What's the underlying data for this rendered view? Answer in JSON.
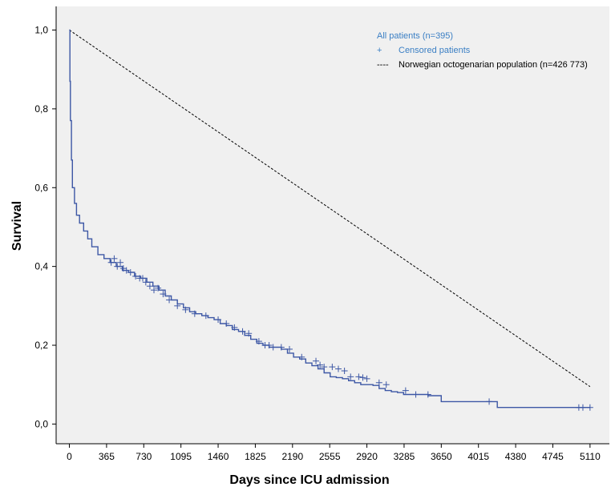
{
  "chart_data": {
    "type": "line",
    "title": "",
    "xlabel": "Days since ICU admission",
    "ylabel": "Survival",
    "xlim": [
      -130,
      5300
    ],
    "ylim": [
      -0.05,
      1.06
    ],
    "x_ticks": [
      0,
      365,
      730,
      1095,
      1460,
      1825,
      2190,
      2555,
      2920,
      3285,
      3650,
      4015,
      4380,
      4745,
      5110
    ],
    "y_ticks": [
      0.0,
      0.2,
      0.4,
      0.6,
      0.8,
      1.0
    ],
    "y_tick_labels": [
      "0,0",
      "0,2",
      "0,4",
      "0,6",
      "0,8",
      "1,0"
    ],
    "grid": false,
    "legend_position": "top-right",
    "colors": {
      "km": "#3d57a5",
      "reference": "#000000",
      "plot_bg": "#f0f0f0",
      "legend_blue": "#3b7fc4"
    },
    "legend": {
      "all_patients": "All patients (n=395)",
      "censored_symbol": "+",
      "censored": "Censored patients",
      "reference_line": "----",
      "reference": "Norwegian octogenarian population (n=426 773)"
    },
    "series": [
      {
        "name": "All patients (n=395)",
        "style": "step",
        "x": [
          0,
          5,
          10,
          20,
          30,
          50,
          70,
          100,
          140,
          180,
          220,
          280,
          340,
          400,
          460,
          520,
          580,
          640,
          700,
          760,
          820,
          880,
          940,
          1000,
          1060,
          1120,
          1180,
          1240,
          1300,
          1360,
          1420,
          1480,
          1540,
          1600,
          1660,
          1720,
          1780,
          1840,
          1900,
          1960,
          2020,
          2080,
          2140,
          2200,
          2260,
          2320,
          2380,
          2440,
          2500,
          2560,
          2620,
          2680,
          2740,
          2800,
          2860,
          2920,
          2980,
          3040,
          3100,
          3160,
          3220,
          3280,
          3340,
          3400,
          3460,
          3520,
          3580,
          3650,
          4200,
          5110
        ],
        "values": [
          1.0,
          0.87,
          0.77,
          0.67,
          0.6,
          0.56,
          0.53,
          0.51,
          0.49,
          0.47,
          0.45,
          0.43,
          0.42,
          0.41,
          0.4,
          0.39,
          0.385,
          0.375,
          0.37,
          0.36,
          0.35,
          0.34,
          0.325,
          0.315,
          0.305,
          0.295,
          0.285,
          0.28,
          0.275,
          0.27,
          0.265,
          0.255,
          0.25,
          0.24,
          0.235,
          0.225,
          0.215,
          0.205,
          0.2,
          0.195,
          0.195,
          0.19,
          0.18,
          0.17,
          0.165,
          0.155,
          0.148,
          0.14,
          0.13,
          0.12,
          0.118,
          0.115,
          0.11,
          0.105,
          0.1,
          0.1,
          0.098,
          0.09,
          0.085,
          0.082,
          0.08,
          0.075,
          0.075,
          0.075,
          0.075,
          0.072,
          0.072,
          0.057,
          0.042,
          0.042
        ]
      },
      {
        "name": "Censored patients",
        "style": "markers",
        "x": [
          410,
          440,
          470,
          500,
          530,
          560,
          600,
          650,
          690,
          720,
          750,
          790,
          830,
          870,
          920,
          980,
          1060,
          1140,
          1230,
          1340,
          1460,
          1540,
          1620,
          1700,
          1760,
          1860,
          1920,
          1960,
          2000,
          2080,
          2160,
          2280,
          2420,
          2460,
          2500,
          2580,
          2640,
          2700,
          2760,
          2840,
          2880,
          2920,
          3040,
          3110,
          3300,
          3400,
          3520,
          4120,
          5000,
          5040,
          5110
        ],
        "values": [
          0.41,
          0.42,
          0.4,
          0.41,
          0.395,
          0.39,
          0.385,
          0.375,
          0.37,
          0.37,
          0.36,
          0.35,
          0.34,
          0.345,
          0.33,
          0.315,
          0.3,
          0.29,
          0.28,
          0.275,
          0.265,
          0.255,
          0.245,
          0.235,
          0.23,
          0.21,
          0.2,
          0.2,
          0.195,
          0.195,
          0.19,
          0.17,
          0.16,
          0.15,
          0.145,
          0.145,
          0.14,
          0.135,
          0.12,
          0.12,
          0.118,
          0.115,
          0.105,
          0.1,
          0.085,
          0.075,
          0.075,
          0.057,
          0.042,
          0.042,
          0.042
        ]
      },
      {
        "name": "Norwegian octogenarian population (n=426 773)",
        "style": "dashed",
        "x": [
          0,
          5110
        ],
        "values": [
          1.0,
          0.095
        ]
      }
    ]
  }
}
